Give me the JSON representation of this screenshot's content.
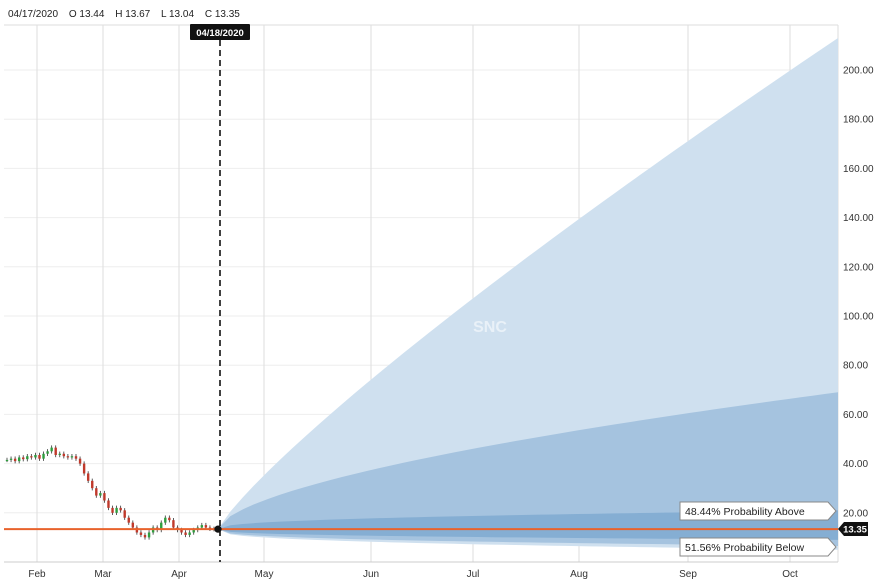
{
  "ohlc": {
    "date": "04/17/2020",
    "open": "O 13.44",
    "high": "H 13.67",
    "low": "L 13.04",
    "close": "C 13.35"
  },
  "marker_date": "04/18/2020",
  "price_tag": "13.35",
  "prob_above": "48.44% Probability Above",
  "prob_below": "51.56% Probability Below",
  "watermark": "SNC",
  "colors": {
    "outer_band": "#cfe0ef",
    "mid_band": "#a5c3df",
    "inner_band": "#85aed3",
    "price_line": "#e8622c",
    "grid": "#dedede"
  },
  "chart_data": {
    "type": "area",
    "y_ticks": [
      "20.00",
      "40.00",
      "60.00",
      "80.00",
      "100.00",
      "120.00",
      "140.00",
      "160.00",
      "180.00",
      "200.00"
    ],
    "x_ticks": [
      "Feb",
      "Mar",
      "Apr",
      "May",
      "Jun",
      "Jul",
      "Aug",
      "Sep",
      "Oct"
    ],
    "ylim": [
      0,
      215
    ],
    "current_price": 13.35,
    "history_close": [
      41.5,
      42,
      41,
      42.5,
      41.8,
      43,
      42.5,
      43.5,
      42,
      44,
      45,
      46.5,
      43.5,
      44,
      43,
      42.5,
      43,
      42,
      40,
      36,
      33,
      30,
      27,
      28,
      25,
      22,
      20,
      22,
      21,
      18,
      16,
      14,
      12,
      11,
      10,
      12,
      14,
      13,
      16,
      18,
      17,
      14,
      13,
      12,
      11,
      12,
      13,
      14,
      15,
      14,
      13.5,
      13.35
    ],
    "projection": {
      "outer_upper_end": 213,
      "mid_upper_end": 69,
      "inner_upper_end": 21,
      "inner_lower_end": 9,
      "mid_lower_end": 6.5,
      "outer_lower_end": 5
    },
    "grid": true
  }
}
